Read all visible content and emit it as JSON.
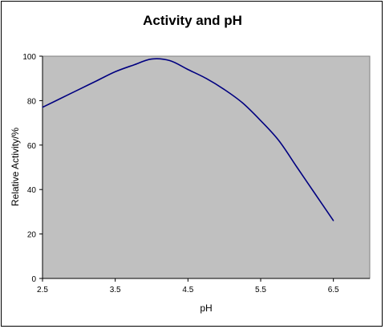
{
  "chart_data": {
    "type": "line",
    "title": "Activity and pH",
    "xlabel": "pH",
    "ylabel": "Relative Activity/%",
    "xlim": [
      2.5,
      7.0
    ],
    "ylim": [
      0,
      100
    ],
    "x_ticks": [
      "2.5",
      "3.5",
      "4.5",
      "5.5",
      "6.5"
    ],
    "y_ticks": [
      "0",
      "20",
      "40",
      "60",
      "80",
      "100"
    ],
    "grid": false,
    "plot_background": "#c0c0c0",
    "series": [
      {
        "color": "#000080",
        "x": [
          2.5,
          2.75,
          3.0,
          3.25,
          3.5,
          3.75,
          4.0,
          4.25,
          4.5,
          4.75,
          5.0,
          5.25,
          5.5,
          5.75,
          6.0,
          6.25,
          6.5
        ],
        "values": [
          77,
          81,
          85,
          89,
          93,
          96,
          98.7,
          98,
          94,
          90,
          85,
          79,
          71,
          62,
          50,
          38,
          26
        ]
      }
    ]
  }
}
